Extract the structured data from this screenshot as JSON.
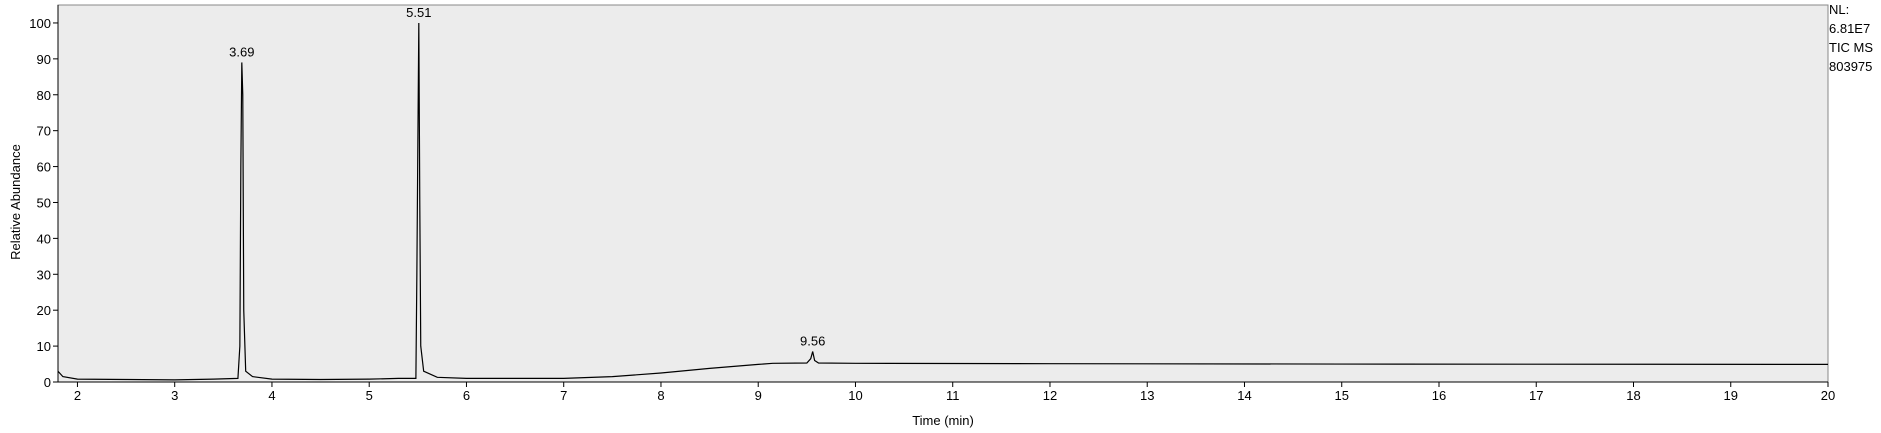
{
  "chart_data": {
    "type": "line",
    "x_label": "Time (min)",
    "y_label": "Relative Abundance",
    "xlim": [
      1.8,
      20
    ],
    "ylim": [
      0,
      105
    ],
    "xticks": [
      2,
      3,
      4,
      5,
      6,
      7,
      8,
      9,
      10,
      11,
      12,
      13,
      14,
      15,
      16,
      17,
      18,
      19,
      20
    ],
    "yticks": [
      0,
      10,
      20,
      30,
      40,
      50,
      60,
      70,
      80,
      90,
      100
    ],
    "series": [
      {
        "name": "TIC",
        "color": "#000000",
        "x": [
          1.8,
          1.85,
          2,
          2.5,
          3,
          3.4,
          3.65,
          3.67,
          3.68,
          3.69,
          3.7,
          3.71,
          3.73,
          3.8,
          4,
          4.5,
          5,
          5.3,
          5.48,
          5.49,
          5.5,
          5.51,
          5.52,
          5.53,
          5.56,
          5.7,
          6,
          6.5,
          7,
          7.5,
          8,
          8.5,
          9,
          9.15,
          9.5,
          9.54,
          9.56,
          9.58,
          9.62,
          10,
          12,
          15,
          20
        ],
        "values": [
          3,
          1.5,
          0.8,
          0.7,
          0.6,
          0.8,
          1,
          10,
          60,
          89,
          80,
          20,
          3,
          1.5,
          0.8,
          0.7,
          0.8,
          1,
          1,
          30,
          66,
          100,
          50,
          10,
          3,
          1.3,
          1,
          1,
          1,
          1.5,
          2.5,
          3.8,
          4.9,
          5.2,
          5.3,
          6.5,
          8.5,
          6,
          5.3,
          5.2,
          5.1,
          5,
          4.9
        ]
      }
    ],
    "annotations": [
      {
        "text": "3.69",
        "x": 3.69,
        "y": 89
      },
      {
        "text": "5.51",
        "x": 5.51,
        "y": 100
      },
      {
        "text": "9.56",
        "x": 9.56,
        "y": 8.5
      }
    ],
    "info_labels": [
      "NL:",
      "6.81E7",
      "TIC  MS",
      "803975"
    ],
    "background": "#ececec"
  }
}
